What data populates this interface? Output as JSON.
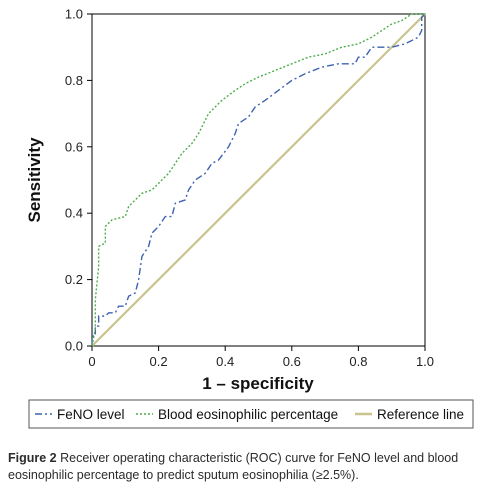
{
  "chart_data": {
    "type": "line",
    "xlabel": "1 – specificity",
    "ylabel": "Sensitivity",
    "xlim": [
      0,
      1
    ],
    "ylim": [
      0,
      1
    ],
    "x_ticks": [
      "0",
      "0.2",
      "0.4",
      "0.6",
      "0.8",
      "1.0"
    ],
    "y_ticks": [
      "0.0",
      "0.2",
      "0.4",
      "0.6",
      "0.8",
      "1.0"
    ],
    "grid": false,
    "legend_position": "bottom",
    "series": [
      {
        "name": "FeNO level",
        "color": "#3f63b0",
        "dash": "dash-dot",
        "points": [
          [
            0,
            0
          ],
          [
            0,
            0.03
          ],
          [
            0.01,
            0.03
          ],
          [
            0.01,
            0.06
          ],
          [
            0.02,
            0.06
          ],
          [
            0.02,
            0.09
          ],
          [
            0.04,
            0.09
          ],
          [
            0.05,
            0.1
          ],
          [
            0.07,
            0.1
          ],
          [
            0.08,
            0.12
          ],
          [
            0.1,
            0.12
          ],
          [
            0.11,
            0.15
          ],
          [
            0.13,
            0.16
          ],
          [
            0.14,
            0.2
          ],
          [
            0.15,
            0.27
          ],
          [
            0.17,
            0.3
          ],
          [
            0.18,
            0.34
          ],
          [
            0.2,
            0.36
          ],
          [
            0.22,
            0.39
          ],
          [
            0.24,
            0.39
          ],
          [
            0.25,
            0.43
          ],
          [
            0.28,
            0.44
          ],
          [
            0.29,
            0.47
          ],
          [
            0.31,
            0.5
          ],
          [
            0.34,
            0.52
          ],
          [
            0.36,
            0.55
          ],
          [
            0.38,
            0.56
          ],
          [
            0.41,
            0.6
          ],
          [
            0.43,
            0.64
          ],
          [
            0.44,
            0.67
          ],
          [
            0.47,
            0.69
          ],
          [
            0.49,
            0.72
          ],
          [
            0.52,
            0.74
          ],
          [
            0.56,
            0.77
          ],
          [
            0.6,
            0.8
          ],
          [
            0.64,
            0.82
          ],
          [
            0.69,
            0.84
          ],
          [
            0.74,
            0.85
          ],
          [
            0.79,
            0.85
          ],
          [
            0.8,
            0.87
          ],
          [
            0.82,
            0.87
          ],
          [
            0.84,
            0.9
          ],
          [
            0.9,
            0.9
          ],
          [
            0.94,
            0.91
          ],
          [
            0.98,
            0.93
          ],
          [
            0.99,
            0.95
          ],
          [
            0.99,
            0.99
          ],
          [
            1,
            1
          ]
        ]
      },
      {
        "name": "Blood eosinophilic percentage",
        "color": "#4cae4c",
        "dash": "dotted",
        "points": [
          [
            0,
            0
          ],
          [
            0.01,
            0.05
          ],
          [
            0.01,
            0.14
          ],
          [
            0.02,
            0.24
          ],
          [
            0.02,
            0.3
          ],
          [
            0.04,
            0.31
          ],
          [
            0.04,
            0.36
          ],
          [
            0.05,
            0.37
          ],
          [
            0.06,
            0.38
          ],
          [
            0.1,
            0.39
          ],
          [
            0.11,
            0.42
          ],
          [
            0.13,
            0.44
          ],
          [
            0.15,
            0.46
          ],
          [
            0.18,
            0.47
          ],
          [
            0.2,
            0.49
          ],
          [
            0.21,
            0.5
          ],
          [
            0.23,
            0.52
          ],
          [
            0.25,
            0.55
          ],
          [
            0.27,
            0.58
          ],
          [
            0.29,
            0.6
          ],
          [
            0.3,
            0.61
          ],
          [
            0.32,
            0.64
          ],
          [
            0.34,
            0.68
          ],
          [
            0.35,
            0.7
          ],
          [
            0.37,
            0.72
          ],
          [
            0.39,
            0.74
          ],
          [
            0.43,
            0.77
          ],
          [
            0.46,
            0.79
          ],
          [
            0.5,
            0.81
          ],
          [
            0.55,
            0.83
          ],
          [
            0.6,
            0.85
          ],
          [
            0.65,
            0.87
          ],
          [
            0.7,
            0.88
          ],
          [
            0.75,
            0.9
          ],
          [
            0.8,
            0.91
          ],
          [
            0.84,
            0.93
          ],
          [
            0.87,
            0.95
          ],
          [
            0.9,
            0.97
          ],
          [
            0.93,
            0.98
          ],
          [
            0.96,
            1
          ],
          [
            1,
            1
          ]
        ]
      },
      {
        "name": "Reference line",
        "color": "#c9c38e",
        "dash": "solid",
        "points": [
          [
            0,
            0
          ],
          [
            1,
            1
          ]
        ]
      }
    ]
  },
  "caption": {
    "label": "Figure 2",
    "text": "Receiver operating characteristic (ROC) curve for FeNO level and blood eosinophilic percentage to predict sputum eosinophilia (≥2.5%)."
  }
}
